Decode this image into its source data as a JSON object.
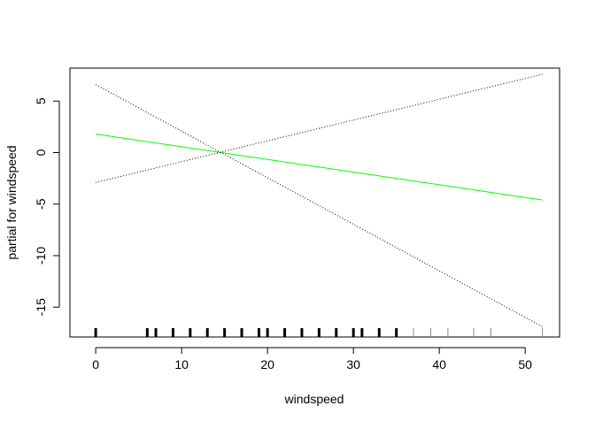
{
  "chart_data": {
    "type": "line",
    "title": "",
    "xlabel": "windspeed",
    "ylabel": "partial for windspeed",
    "xlim": [
      -3,
      54
    ],
    "ylim": [
      -17.9,
      8.2
    ],
    "x_ticks": [
      0,
      10,
      20,
      30,
      40,
      50
    ],
    "y_ticks": [
      5,
      0,
      -5,
      -10,
      -15
    ],
    "grid": false,
    "series": [
      {
        "role": "fit",
        "color": "#00ff00",
        "style": "solid",
        "x": [
          0,
          52
        ],
        "y": [
          1.8,
          -4.6
        ]
      },
      {
        "role": "upper-band",
        "color": "#000000",
        "style": "dotted",
        "x": [
          0,
          52
        ],
        "y": [
          -2.9,
          7.6
        ]
      },
      {
        "role": "lower-band",
        "color": "#000000",
        "style": "dotted",
        "x": [
          0,
          52
        ],
        "y": [
          6.6,
          -16.9
        ]
      }
    ],
    "rug": [
      0,
      6,
      7,
      9,
      11,
      13,
      15,
      17,
      19,
      20,
      22,
      24,
      26,
      28,
      30,
      31,
      33,
      35,
      37,
      39,
      41,
      44,
      46,
      52
    ]
  }
}
